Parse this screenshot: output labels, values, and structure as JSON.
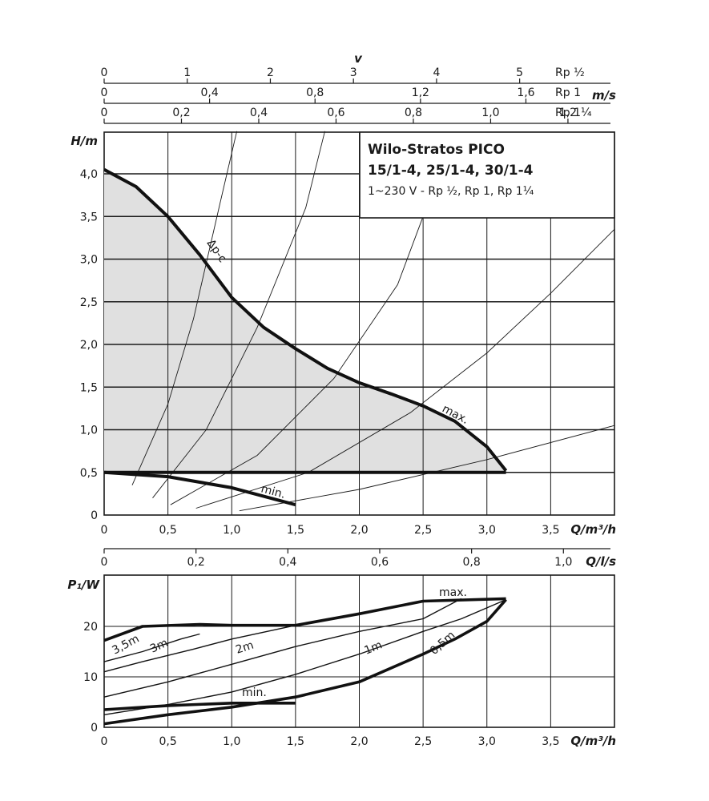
{
  "title": {
    "line1": "Wilo-Stratos PICO",
    "line2": "15/1-4, 25/1-4, 30/1-4",
    "line3": "1~230 V - Rp ½, Rp 1, Rp 1¼"
  },
  "velocity_scales": {
    "symbol": "v",
    "unit": "m/s",
    "scales": [
      {
        "label": "Rp ½",
        "ticks": [
          "0",
          "1",
          "2",
          "3",
          "4",
          "5"
        ],
        "values": [
          0,
          1,
          2,
          3,
          4,
          5
        ]
      },
      {
        "label": "Rp 1",
        "ticks": [
          "0",
          "0,4",
          "0,8",
          "1,2",
          "1,6"
        ],
        "values": [
          0,
          0.4,
          0.8,
          1.2,
          1.6
        ]
      },
      {
        "label": "Rp 1¼",
        "ticks": [
          "0",
          "0,2",
          "0,4",
          "0,6",
          "0,8",
          "1,0",
          "1,2"
        ],
        "values": [
          0,
          0.2,
          0.4,
          0.6,
          0.8,
          1.0,
          1.2
        ]
      }
    ]
  },
  "flow_ls_axis": {
    "unit": "Q/l/s",
    "ticks": [
      "0",
      "0,2",
      "0,4",
      "0,6",
      "0,8",
      "1,0"
    ],
    "values": [
      0,
      0.2,
      0.4,
      0.6,
      0.8,
      1.0
    ]
  },
  "chart_data": [
    {
      "type": "line",
      "panel": "head",
      "xlabel": "Q/m³/h",
      "ylabel": "H/m",
      "xlim": [
        0,
        4
      ],
      "ylim": [
        0,
        4.5
      ],
      "x_ticks": [
        "0",
        "0,5",
        "1,0",
        "1,5",
        "2,0",
        "2,5",
        "3,0",
        "3,5"
      ],
      "x_tick_values": [
        0,
        0.5,
        1.0,
        1.5,
        2.0,
        2.5,
        3.0,
        3.5
      ],
      "y_ticks": [
        "0",
        "0,5",
        "1,0",
        "1,5",
        "2,0",
        "2,5",
        "3,0",
        "3,5",
        "4,0"
      ],
      "y_tick_values": [
        0,
        0.5,
        1.0,
        1.5,
        2.0,
        2.5,
        3.0,
        3.5,
        4.0
      ],
      "grid": true,
      "shaded_region": "between min. setting (0.5 m) and max. curve",
      "series": [
        {
          "name": "max.",
          "label": "Δp-c",
          "points": [
            [
              0,
              4.05
            ],
            [
              0.25,
              3.85
            ],
            [
              0.5,
              3.5
            ],
            [
              0.75,
              3.05
            ],
            [
              1.0,
              2.55
            ],
            [
              1.25,
              2.2
            ],
            [
              1.5,
              1.95
            ],
            [
              1.75,
              1.72
            ],
            [
              2.0,
              1.55
            ],
            [
              2.25,
              1.42
            ],
            [
              2.5,
              1.28
            ],
            [
              2.75,
              1.1
            ],
            [
              3.0,
              0.8
            ],
            [
              3.15,
              0.52
            ]
          ]
        },
        {
          "name": "min.",
          "points": [
            [
              0,
              0.5
            ],
            [
              0.5,
              0.45
            ],
            [
              1.0,
              0.32
            ],
            [
              1.5,
              0.12
            ]
          ]
        },
        {
          "name": "0.5 m",
          "points": [
            [
              0,
              0.5
            ],
            [
              3.15,
              0.5
            ]
          ]
        }
      ],
      "system_curves": [
        {
          "points": [
            [
              0.22,
              0.35
            ],
            [
              0.5,
              1.3
            ],
            [
              0.7,
              2.3
            ],
            [
              0.9,
              3.6
            ],
            [
              1.04,
              4.5
            ]
          ]
        },
        {
          "points": [
            [
              0.38,
              0.2
            ],
            [
              0.8,
              1.0
            ],
            [
              1.2,
              2.2
            ],
            [
              1.58,
              3.6
            ],
            [
              1.73,
              4.5
            ]
          ]
        },
        {
          "points": [
            [
              0.52,
              0.12
            ],
            [
              1.2,
              0.7
            ],
            [
              1.8,
              1.6
            ],
            [
              2.3,
              2.7
            ],
            [
              2.5,
              3.5
            ]
          ]
        },
        {
          "points": [
            [
              0.72,
              0.08
            ],
            [
              1.6,
              0.5
            ],
            [
              2.4,
              1.2
            ],
            [
              3.0,
              1.9
            ],
            [
              3.5,
              2.6
            ],
            [
              4.0,
              3.35
            ]
          ]
        },
        {
          "points": [
            [
              1.06,
              0.05
            ],
            [
              2.0,
              0.3
            ],
            [
              3.0,
              0.65
            ],
            [
              4.0,
              1.05
            ]
          ]
        }
      ]
    },
    {
      "type": "line",
      "panel": "power",
      "xlabel": "Q/m³/h",
      "ylabel": "P₁/W",
      "xlim": [
        0,
        4
      ],
      "ylim": [
        0,
        30
      ],
      "x_ticks": [
        "0",
        "0,5",
        "1,0",
        "1,5",
        "2,0",
        "2,5",
        "3,0",
        "3,5"
      ],
      "x_tick_values": [
        0,
        0.5,
        1.0,
        1.5,
        2.0,
        2.5,
        3.0,
        3.5
      ],
      "y_ticks": [
        "0",
        "10",
        "20"
      ],
      "y_tick_values": [
        0,
        10,
        20
      ],
      "grid": true,
      "series": [
        {
          "name": "max.",
          "points": [
            [
              0,
              17.2
            ],
            [
              0.3,
              20
            ],
            [
              0.75,
              20.4
            ],
            [
              1.0,
              20.2
            ],
            [
              1.5,
              20.2
            ],
            [
              2.0,
              22.5
            ],
            [
              2.5,
              25
            ],
            [
              3.15,
              25.5
            ]
          ]
        },
        {
          "name": "3,5m",
          "points": [
            [
              0,
              13
            ],
            [
              0.3,
              15
            ],
            [
              0.6,
              17.5
            ],
            [
              0.75,
              18.5
            ]
          ]
        },
        {
          "name": "3m",
          "points": [
            [
              0,
              11
            ],
            [
              0.3,
              13
            ],
            [
              0.7,
              15.5
            ],
            [
              1.0,
              17.5
            ],
            [
              1.5,
              20.2
            ]
          ]
        },
        {
          "name": "2m",
          "points": [
            [
              0,
              6
            ],
            [
              0.5,
              9
            ],
            [
              1.0,
              12.5
            ],
            [
              1.5,
              16
            ],
            [
              2.0,
              19
            ],
            [
              2.5,
              21.5
            ],
            [
              2.8,
              25.5
            ]
          ]
        },
        {
          "name": "1m",
          "points": [
            [
              0,
              2.5
            ],
            [
              0.5,
              4.5
            ],
            [
              1.0,
              7
            ],
            [
              1.5,
              10.5
            ],
            [
              2.0,
              14.5
            ],
            [
              2.5,
              19
            ],
            [
              2.8,
              21.5
            ],
            [
              3.15,
              25.3
            ]
          ]
        },
        {
          "name": "0,5m",
          "points": [
            [
              0,
              0.7
            ],
            [
              0.5,
              2.5
            ],
            [
              1.0,
              4
            ],
            [
              1.5,
              6
            ],
            [
              2.0,
              9
            ],
            [
              2.5,
              14.5
            ],
            [
              2.75,
              17.5
            ],
            [
              3.0,
              21
            ],
            [
              3.15,
              25.3
            ]
          ]
        },
        {
          "name": "min.",
          "points": [
            [
              0,
              3.5
            ],
            [
              0.5,
              4.3
            ],
            [
              1.0,
              4.8
            ],
            [
              1.5,
              4.8
            ]
          ]
        }
      ]
    }
  ]
}
